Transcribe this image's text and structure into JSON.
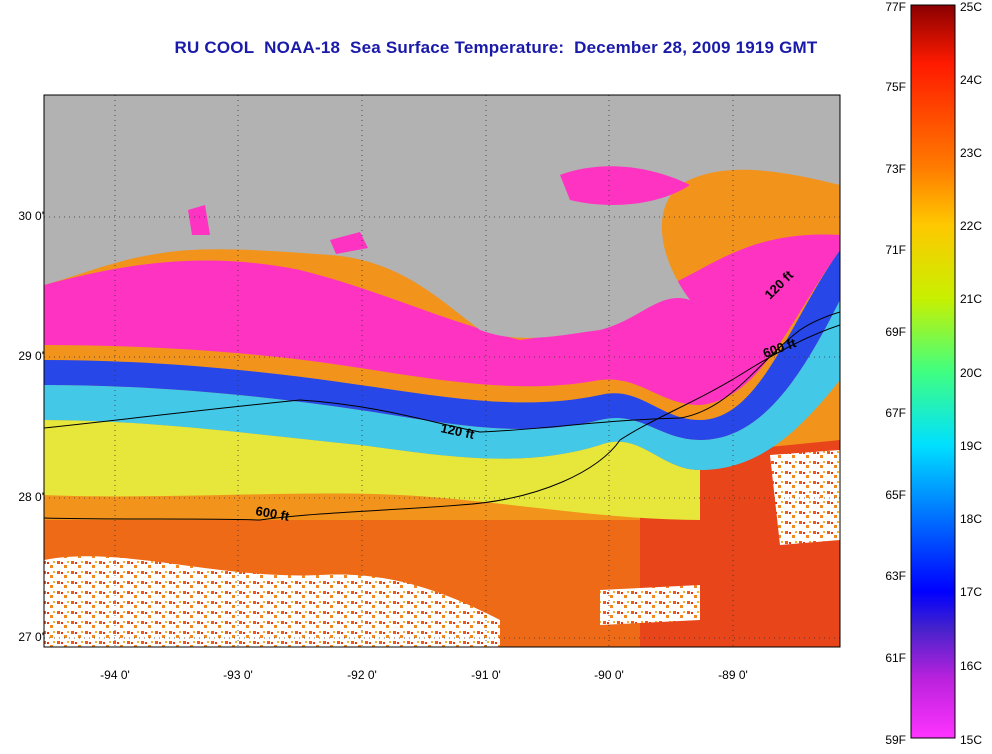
{
  "title": {
    "prefix": "RU COOL",
    "satellite": "NOAA-18",
    "product": "Sea Surface Temperature:",
    "date": "December 28, 2009 1919 GMT"
  },
  "map": {
    "latitude_labels": [
      "30 0'",
      "29 0'",
      "28 0'",
      "27 0'"
    ],
    "longitude_labels": [
      "-94 0'",
      "-93 0'",
      "-92 0'",
      "-91 0'",
      "-90 0'",
      "-89 0'"
    ],
    "contour_labels": {
      "shelf_120_west": "120 ft",
      "shelf_120_east": "120 ft",
      "shelf_600_west": "600 ft",
      "shelf_600_east": "600 ft"
    },
    "colors": {
      "land": "#b2b2b2",
      "coldest": "#ff33cc",
      "cold": "#2244ee",
      "cool": "#33c8ee",
      "mid": "#e8ee22",
      "warm": "#f59a1c",
      "warmest": "#ec3a10",
      "cloud": "#ffffff"
    }
  },
  "colorbar": {
    "fahrenheit": [
      "77F",
      "75F",
      "73F",
      "71F",
      "69F",
      "67F",
      "65F",
      "63F",
      "61F",
      "59F"
    ],
    "celsius": [
      "25C",
      "24C",
      "23C",
      "22C",
      "21C",
      "20C",
      "19C",
      "18C",
      "17C",
      "16C",
      "15C"
    ],
    "range_c": [
      15,
      25
    ],
    "range_f": [
      59,
      77
    ]
  }
}
